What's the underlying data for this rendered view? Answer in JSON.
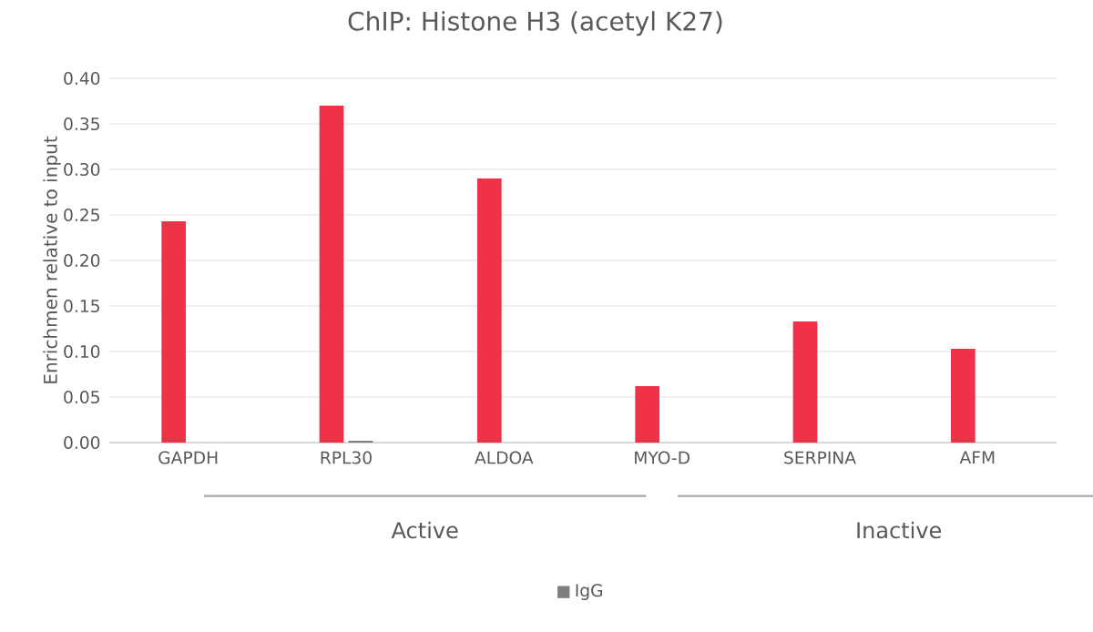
{
  "chart_data": {
    "type": "bar",
    "title": "ChIP: Histone H3 (acetyl K27)",
    "ylabel": "Enrichmen relative to input",
    "categories": [
      "GAPDH",
      "RPL30",
      "ALDOA",
      "MYO-D",
      "SERPINA",
      "AFM"
    ],
    "series": [
      {
        "color": "#ef3248",
        "values": [
          0.243,
          0.37,
          0.29,
          0.062,
          0.133,
          0.103
        ]
      },
      {
        "name": "IgG",
        "color": "#7f7f7f",
        "values": [
          0,
          0.002,
          0,
          0,
          0,
          0
        ]
      }
    ],
    "ylim": [
      0,
      0.4
    ],
    "yticks": [
      {
        "value": 0,
        "label": "0.00"
      },
      {
        "value": 0.05,
        "label": "0.05"
      },
      {
        "value": 0.1,
        "label": "0.10"
      },
      {
        "value": 0.15,
        "label": "0.15"
      },
      {
        "value": 0.2,
        "label": "0.20"
      },
      {
        "value": 0.25,
        "label": "0.25"
      },
      {
        "value": 0.3,
        "label": "0.30"
      },
      {
        "value": 0.35,
        "label": "0.35"
      },
      {
        "value": 0.4,
        "label": "0.40"
      }
    ],
    "annotations": [
      "Active",
      "Inactive"
    ],
    "grid": "y",
    "legend": "bottom"
  }
}
